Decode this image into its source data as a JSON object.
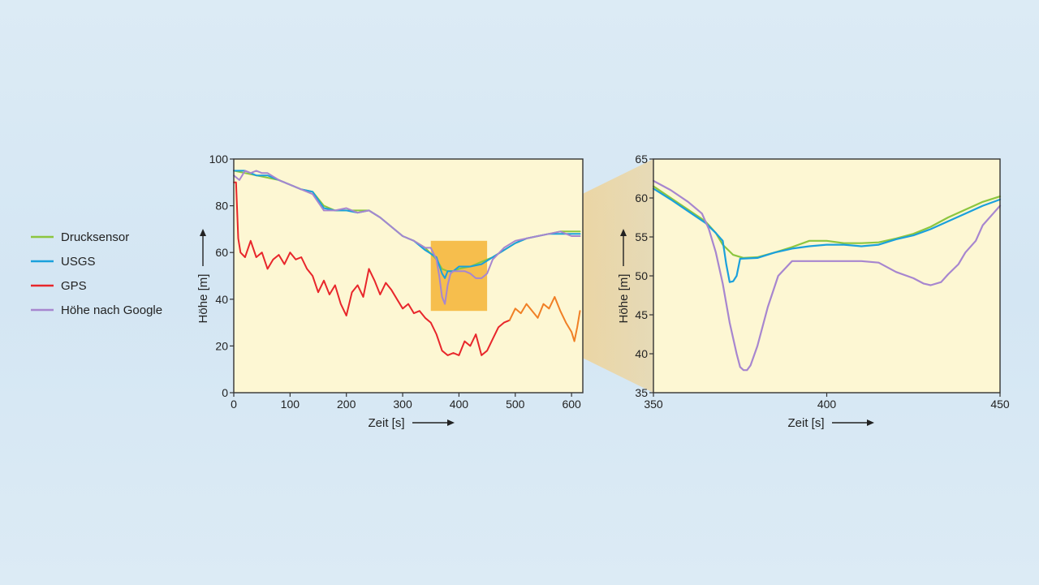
{
  "colors": {
    "background": "#d8e9f4",
    "plot_bg": "#fdf7d3",
    "highlight": "#f5b73e",
    "zoom_band": "#f3cf86",
    "Drucksensor": "#8cc63f",
    "USGS": "#1aa0dc",
    "GPS": "#e8262b",
    "GPS_zoomed": "#f07f25",
    "Google": "#a786cf"
  },
  "legend": [
    {
      "key": "Drucksensor",
      "label": "Drucksensor"
    },
    {
      "key": "USGS",
      "label": "USGS"
    },
    {
      "key": "GPS",
      "label": "GPS"
    },
    {
      "key": "Google",
      "label": "Höhe nach Google"
    }
  ],
  "chart_data": [
    {
      "type": "line",
      "xlabel": "Zeit [s]",
      "ylabel": "Höhe [m]",
      "xlim": [
        0,
        620
      ],
      "ylim": [
        0,
        100
      ],
      "xticks": [
        0,
        100,
        200,
        300,
        400,
        500,
        600
      ],
      "yticks": [
        0,
        20,
        40,
        60,
        80,
        100
      ],
      "highlight_region": {
        "x": [
          350,
          450
        ],
        "y": [
          35,
          65
        ]
      },
      "series": [
        {
          "name": "Drucksensor",
          "color_key": "Drucksensor",
          "x": [
            0,
            20,
            40,
            60,
            80,
            100,
            120,
            140,
            160,
            180,
            200,
            220,
            240,
            260,
            280,
            300,
            320,
            340,
            360,
            370,
            380,
            390,
            400,
            420,
            440,
            460,
            480,
            500,
            520,
            540,
            560,
            580,
            600,
            615
          ],
          "y": [
            95,
            94,
            93,
            92,
            91,
            89,
            87,
            86,
            80,
            78,
            78,
            78,
            78,
            75,
            71,
            67,
            65,
            62,
            57,
            53,
            52,
            52,
            53,
            54,
            56,
            58,
            61,
            64,
            66,
            67,
            68,
            69,
            69,
            69
          ]
        },
        {
          "name": "USGS",
          "color_key": "USGS",
          "x": [
            0,
            20,
            40,
            60,
            80,
            100,
            120,
            140,
            160,
            180,
            200,
            220,
            240,
            260,
            280,
            300,
            320,
            340,
            360,
            370,
            375,
            380,
            390,
            400,
            420,
            440,
            460,
            480,
            500,
            520,
            540,
            560,
            580,
            600,
            615
          ],
          "y": [
            95,
            95,
            93,
            93,
            91,
            89,
            87,
            86,
            79,
            78,
            78,
            77,
            78,
            75,
            71,
            67,
            65,
            61,
            58,
            51,
            49,
            52,
            52,
            54,
            54,
            55,
            58,
            61,
            64,
            66,
            67,
            68,
            68,
            68,
            68
          ]
        },
        {
          "name": "GPS",
          "color_key": "GPS",
          "x": [
            0,
            4,
            8,
            12,
            20,
            30,
            40,
            50,
            60,
            70,
            80,
            90,
            100,
            110,
            120,
            130,
            140,
            150,
            160,
            170,
            180,
            190,
            200,
            210,
            220,
            230,
            240,
            250,
            260,
            270,
            280,
            290,
            300,
            310,
            320,
            330,
            340,
            350,
            360,
            370,
            380,
            390,
            400,
            410,
            420,
            430,
            440,
            450,
            460,
            470,
            480,
            490
          ],
          "y": [
            90,
            90,
            66,
            60,
            58,
            65,
            58,
            60,
            53,
            57,
            59,
            55,
            60,
            57,
            58,
            53,
            50,
            43,
            48,
            42,
            46,
            38,
            33,
            43,
            46,
            41,
            53,
            48,
            42,
            47,
            44,
            40,
            36,
            38,
            34,
            35,
            32,
            30,
            25,
            18,
            16,
            17,
            16,
            22,
            20,
            25,
            16,
            18,
            23,
            28,
            30,
            31
          ]
        },
        {
          "name": "GPS",
          "color_key": "GPS_zoomed",
          "x": [
            490,
            500,
            510,
            520,
            530,
            540,
            550,
            560,
            570,
            580,
            590,
            600,
            605,
            610,
            615
          ],
          "y": [
            31,
            36,
            34,
            38,
            35,
            32,
            38,
            36,
            41,
            35,
            30,
            26,
            22,
            28,
            35
          ]
        },
        {
          "name": "Höhe nach Google",
          "color_key": "Google",
          "x": [
            0,
            10,
            20,
            30,
            40,
            50,
            60,
            80,
            100,
            120,
            140,
            160,
            180,
            200,
            220,
            240,
            260,
            280,
            300,
            320,
            340,
            350,
            360,
            365,
            370,
            375,
            380,
            385,
            390,
            400,
            410,
            420,
            430,
            440,
            450,
            460,
            480,
            500,
            520,
            540,
            560,
            580,
            600,
            615
          ],
          "y": [
            93,
            91,
            95,
            94,
            95,
            94,
            94,
            91,
            89,
            87,
            85,
            78,
            78,
            79,
            77,
            78,
            75,
            71,
            67,
            65,
            62,
            62,
            57,
            50,
            41,
            38,
            46,
            51,
            52,
            52,
            52,
            51,
            49,
            49,
            51,
            57,
            62,
            65,
            66,
            67,
            68,
            69,
            67,
            67
          ]
        }
      ]
    },
    {
      "type": "line",
      "xlabel": "Zeit [s]",
      "ylabel": "Höhe [m]",
      "xlim": [
        350,
        450
      ],
      "ylim": [
        35,
        65
      ],
      "xticks": [
        350,
        400,
        450
      ],
      "yticks": [
        35,
        40,
        45,
        50,
        55,
        60,
        65
      ],
      "series": [
        {
          "name": "Drucksensor",
          "color_key": "Drucksensor",
          "x": [
            350,
            355,
            360,
            365,
            368,
            370,
            373,
            376,
            380,
            385,
            390,
            395,
            400,
            405,
            410,
            415,
            420,
            425,
            430,
            435,
            440,
            445,
            450
          ],
          "y": [
            61.5,
            60,
            58.5,
            57,
            55.5,
            54,
            52.7,
            52.3,
            52.4,
            53,
            53.7,
            54.5,
            54.5,
            54.2,
            54.2,
            54.3,
            54.8,
            55.4,
            56.3,
            57.5,
            58.5,
            59.5,
            60.2
          ]
        },
        {
          "name": "USGS",
          "color_key": "USGS",
          "x": [
            350,
            355,
            360,
            365,
            368,
            370,
            371,
            372,
            373,
            374,
            375,
            380,
            385,
            390,
            395,
            400,
            405,
            410,
            415,
            420,
            425,
            430,
            435,
            440,
            445,
            450
          ],
          "y": [
            61.2,
            59.8,
            58.3,
            56.8,
            55.5,
            54.5,
            51.5,
            49.2,
            49.3,
            50,
            52.2,
            52.3,
            53,
            53.5,
            53.8,
            54,
            54,
            53.8,
            54,
            54.7,
            55.2,
            56,
            57,
            58,
            59,
            59.8
          ]
        },
        {
          "name": "Höhe nach Google",
          "color_key": "Google",
          "x": [
            350,
            355,
            360,
            364,
            366,
            368,
            370,
            372,
            374,
            375,
            376,
            377,
            378,
            380,
            383,
            386,
            390,
            395,
            400,
            405,
            410,
            415,
            420,
            425,
            428,
            430,
            433,
            435,
            438,
            440,
            443,
            445,
            448,
            450
          ],
          "y": [
            62.2,
            61,
            59.5,
            58,
            56,
            53,
            49,
            44,
            40,
            38.3,
            37.9,
            37.9,
            38.5,
            41,
            46,
            50,
            51.9,
            51.9,
            51.9,
            51.9,
            51.9,
            51.7,
            50.5,
            49.7,
            49,
            48.8,
            49.2,
            50.2,
            51.5,
            53,
            54.5,
            56.5,
            58,
            59
          ]
        }
      ]
    }
  ]
}
